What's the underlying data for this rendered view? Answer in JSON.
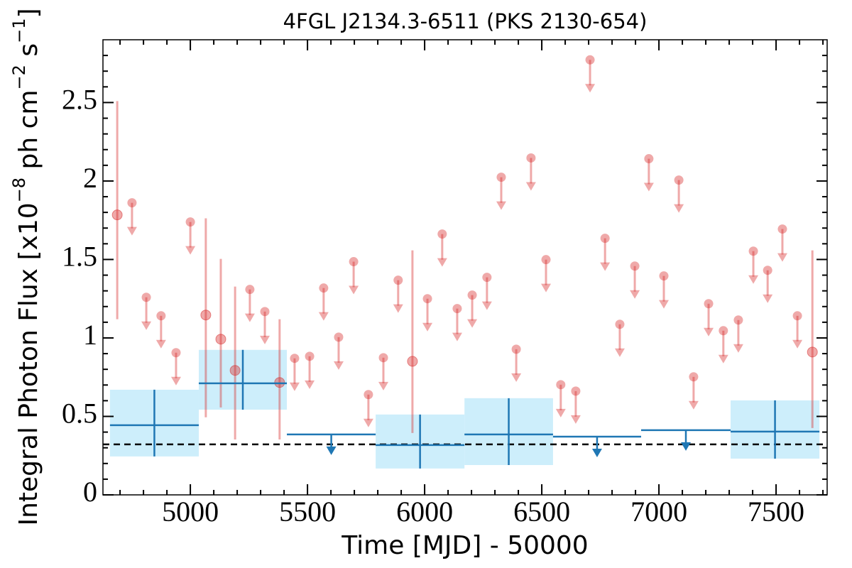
{
  "chart_data": {
    "type": "lightcurve",
    "title": "4FGL J2134.3-6511 (PKS 2130-654)",
    "xlabel": "Time [MJD] - 50000",
    "ylabel": [
      "Integral Photon Flux [x10",
      "−8",
      " ph cm",
      "−2",
      " s",
      "−1",
      "]"
    ],
    "xlim": [
      4627,
      7718
    ],
    "ylim": [
      0,
      2.9
    ],
    "xticks": [
      5000,
      5500,
      6000,
      6500,
      7000,
      7500
    ],
    "yticks": [
      0,
      0.5,
      1,
      1.5,
      2,
      2.5
    ],
    "xminorticks": [
      4700,
      4800,
      4900,
      5100,
      5200,
      5300,
      5400,
      5600,
      5700,
      5800,
      5900,
      6100,
      6200,
      6300,
      6400,
      6600,
      6700,
      6800,
      6900,
      7100,
      7200,
      7300,
      7400,
      7600,
      7700
    ],
    "yminorticks": [
      0.1,
      0.2,
      0.3,
      0.4,
      0.6,
      0.7,
      0.8,
      0.9,
      1.1,
      1.2,
      1.3,
      1.4,
      1.6,
      1.7,
      1.8,
      1.9,
      2.1,
      2.2,
      2.3,
      2.4,
      2.6,
      2.7,
      2.8
    ],
    "short_bins": {
      "color": "#d62728",
      "detections": {
        "x": [
          4688,
          5066,
          5130,
          5191,
          5381,
          5948,
          7655
        ],
        "values": [
          1.784,
          1.146,
          0.992,
          0.793,
          0.716,
          0.851,
          0.91
        ],
        "err_low": [
          1.119,
          0.494,
          0.557,
          0.353,
          0.353,
          0.394,
          0.426
        ],
        "err_high": [
          2.509,
          1.762,
          1.504,
          1.327,
          1.119,
          1.558,
          1.558
        ]
      },
      "upper_limits": {
        "x": [
          4751,
          4812,
          4875,
          4939,
          5000,
          5254,
          5318,
          5445,
          5509,
          5569,
          5633,
          5697,
          5760,
          5824,
          5887,
          6012,
          6075,
          6139,
          6203,
          6266,
          6327,
          6391,
          6454,
          6518,
          6581,
          6645,
          6706,
          6770,
          6833,
          6897,
          6957,
          7021,
          7085,
          7148,
          7212,
          7275,
          7339,
          7403,
          7464,
          7527,
          7591
        ],
        "values": [
          1.861,
          1.259,
          1.141,
          0.906,
          1.739,
          1.309,
          1.168,
          0.87,
          0.883,
          1.318,
          1.005,
          1.486,
          0.639,
          0.874,
          1.368,
          1.25,
          1.662,
          1.187,
          1.273,
          1.386,
          2.024,
          0.928,
          2.147,
          1.499,
          0.702,
          0.661,
          2.772,
          1.635,
          1.087,
          1.458,
          2.142,
          1.395,
          2.006,
          0.752,
          1.218,
          1.046,
          1.114,
          1.553,
          1.431,
          1.694,
          1.141
        ]
      }
    },
    "long_bins": {
      "color": "#1f77b4",
      "band_color": "#cdeefb",
      "detections": {
        "x_start": [
          4657,
          5036,
          5791,
          6170,
          7306
        ],
        "x_end": [
          5036,
          5412,
          6170,
          6548,
          7685
        ],
        "values": [
          0.444,
          0.711,
          0.317,
          0.385,
          0.403
        ],
        "err_low": [
          0.245,
          0.543,
          0.168,
          0.19,
          0.231
        ],
        "err_high": [
          0.67,
          0.924,
          0.512,
          0.616,
          0.602
        ]
      },
      "upper_limits": {
        "x_start": [
          5412,
          6548,
          6924
        ],
        "x_end": [
          5791,
          6924,
          7306
        ],
        "values": [
          0.385,
          0.371,
          0.412
        ]
      }
    },
    "hline": {
      "value": 0.322,
      "color": "#000000"
    }
  }
}
